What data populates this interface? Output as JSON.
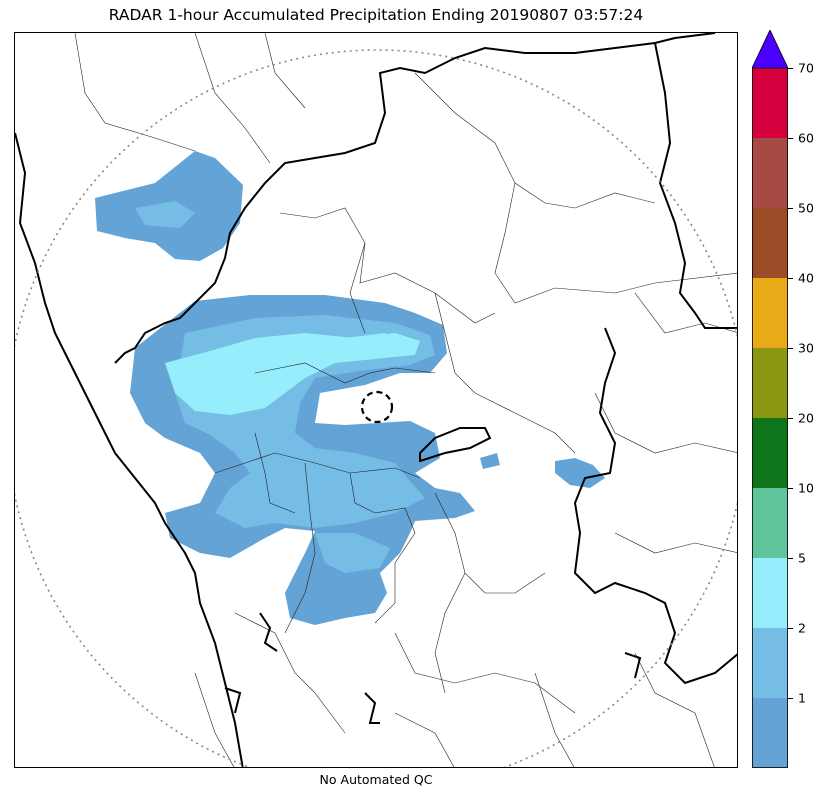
{
  "title": "RADAR 1-hour Accumulated Precipitation Ending 20190807 03:57:24",
  "footer_note": "No Automated QC",
  "colorbar": {
    "levels": [
      "1",
      "2",
      "5",
      "10",
      "20",
      "30",
      "40",
      "50",
      "60",
      "70"
    ],
    "colors": [
      "#64a3d6",
      "#75bde5",
      "#96eefc",
      "#5ec59b",
      "#0f751b",
      "#8b9712",
      "#e9aa18",
      "#9b4d27",
      "#a64a43",
      "#d6003f"
    ],
    "overflow_color": "#4b00ff"
  },
  "map": {
    "radar_site_marker": "dashed-circle",
    "range_ring": "dotted-circle",
    "precip_colors": {
      "light": "#64a3d6",
      "moderate": "#75bde5",
      "heavy": "#96eefc"
    }
  }
}
